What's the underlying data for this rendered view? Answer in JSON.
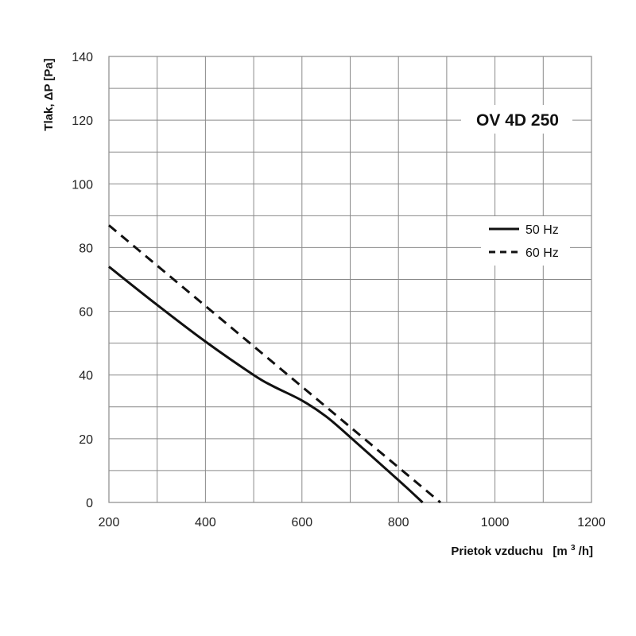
{
  "chart_data": {
    "type": "line",
    "title": "OV 4D 250",
    "xlabel": "Prietok vzduchu",
    "xunit_prefix": "[m",
    "xunit_sup": "3",
    "xunit_suffix": "/h]",
    "ylabel": "Tlak, ΔP [Pa]",
    "xlim": [
      200,
      1200
    ],
    "ylim": [
      0,
      140
    ],
    "x_ticks": [
      "200",
      "400",
      "600",
      "800",
      "1000",
      "1200"
    ],
    "y_ticks": [
      "0",
      "20",
      "40",
      "60",
      "80",
      "100",
      "120",
      "140"
    ],
    "grid": true,
    "legend_position": "right",
    "series": [
      {
        "name": "50 Hz",
        "style": "solid",
        "color": "#111111",
        "points": [
          [
            200,
            74
          ],
          [
            300,
            62
          ],
          [
            400,
            50.5
          ],
          [
            500,
            40
          ],
          [
            540,
            36.5
          ],
          [
            600,
            32
          ],
          [
            650,
            27
          ],
          [
            700,
            20.5
          ],
          [
            800,
            7
          ],
          [
            850,
            0
          ]
        ]
      },
      {
        "name": "60 Hz",
        "style": "dashed",
        "color": "#111111",
        "points": [
          [
            200,
            87
          ],
          [
            887,
            0
          ]
        ]
      }
    ]
  }
}
